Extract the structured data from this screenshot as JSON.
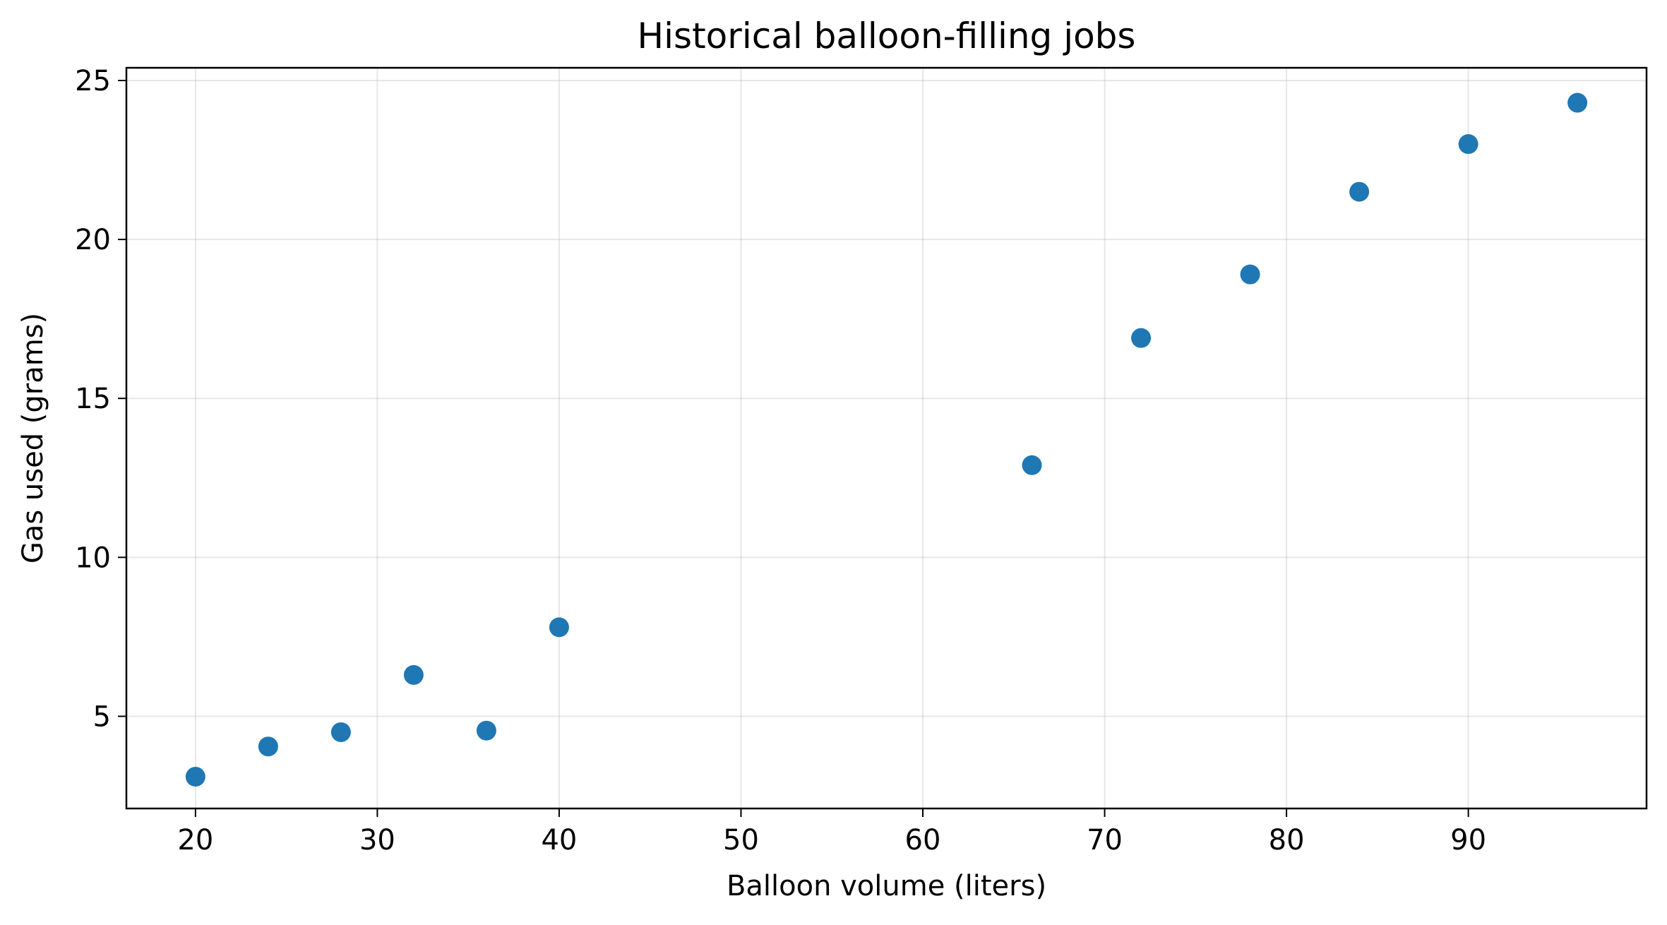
{
  "chart_data": {
    "type": "scatter",
    "title": "Historical balloon-filling jobs",
    "xlabel": "Balloon volume (liters)",
    "ylabel": "Gas used (grams)",
    "xlim": [
      16.2,
      99.8
    ],
    "ylim": [
      2.1,
      25.4
    ],
    "xticks": [
      20,
      30,
      40,
      50,
      60,
      70,
      80,
      90
    ],
    "yticks": [
      5,
      10,
      15,
      20,
      25
    ],
    "grid": true,
    "legend": "none",
    "point_color": "#1f77b4",
    "points": [
      {
        "x": 20,
        "y": 3.1
      },
      {
        "x": 24,
        "y": 4.05
      },
      {
        "x": 28,
        "y": 4.5
      },
      {
        "x": 32,
        "y": 6.3
      },
      {
        "x": 36,
        "y": 4.55
      },
      {
        "x": 40,
        "y": 7.8
      },
      {
        "x": 66,
        "y": 12.9
      },
      {
        "x": 72,
        "y": 16.9
      },
      {
        "x": 78,
        "y": 18.9
      },
      {
        "x": 84,
        "y": 21.5
      },
      {
        "x": 90,
        "y": 23.0
      },
      {
        "x": 96,
        "y": 24.3
      }
    ]
  }
}
